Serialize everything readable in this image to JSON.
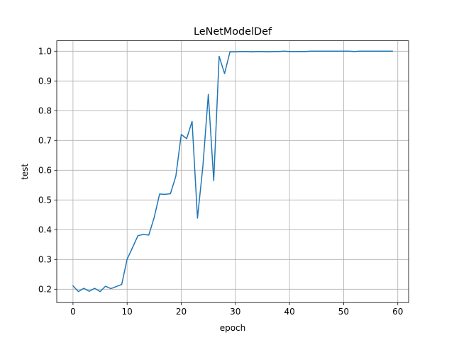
{
  "chart_data": {
    "type": "line",
    "title": "LeNetModelDef",
    "xlabel": "epoch",
    "ylabel": "test",
    "xlim": [
      -3,
      62
    ],
    "ylim": [
      0.155,
      1.035
    ],
    "xticks": [
      0,
      10,
      20,
      30,
      40,
      50,
      60
    ],
    "yticks": [
      0.2,
      0.3,
      0.4,
      0.5,
      0.6,
      0.7,
      0.8,
      0.9,
      1.0
    ],
    "grid": true,
    "series": [
      {
        "color": "#1f77b4",
        "x": [
          0,
          1,
          2,
          3,
          4,
          5,
          6,
          7,
          8,
          9,
          10,
          11,
          12,
          13,
          14,
          15,
          16,
          17,
          18,
          19,
          20,
          21,
          22,
          23,
          24,
          25,
          26,
          27,
          28,
          29,
          30,
          31,
          32,
          33,
          34,
          35,
          36,
          37,
          38,
          39,
          40,
          41,
          42,
          43,
          44,
          45,
          46,
          47,
          48,
          49,
          50,
          51,
          52,
          53,
          54,
          55,
          56,
          57,
          58,
          59
        ],
        "values": [
          0.211,
          0.192,
          0.203,
          0.193,
          0.203,
          0.192,
          0.21,
          0.202,
          0.209,
          0.216,
          0.301,
          0.34,
          0.38,
          0.384,
          0.382,
          0.441,
          0.52,
          0.519,
          0.521,
          0.58,
          0.72,
          0.706,
          0.764,
          0.439,
          0.614,
          0.855,
          0.565,
          0.983,
          0.925,
          0.998,
          0.998,
          0.999,
          0.999,
          0.998,
          0.999,
          0.999,
          0.998,
          0.999,
          0.999,
          1.0,
          0.999,
          0.999,
          0.999,
          0.999,
          1.0,
          1.0,
          1.0,
          1.0,
          1.0,
          1.0,
          1.0,
          1.0,
          0.999,
          1.0,
          1.0,
          1.0,
          1.0,
          1.0,
          1.0,
          1.0
        ]
      }
    ]
  }
}
